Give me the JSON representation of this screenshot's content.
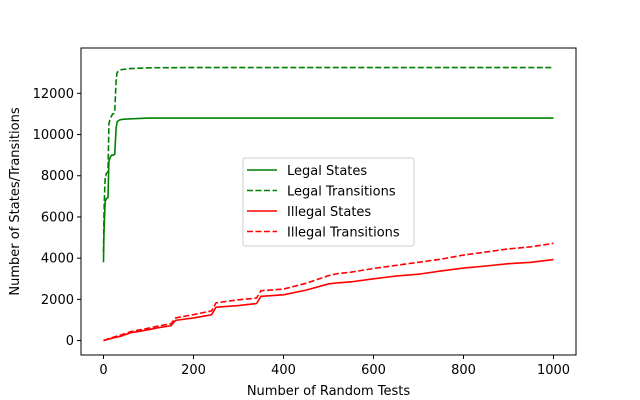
{
  "chart_data": {
    "type": "line",
    "xlabel": "Number of Random Tests",
    "ylabel": "Number of States/Transitions",
    "xlim": [
      -50,
      1050
    ],
    "ylim": [
      -700,
      14200
    ],
    "xticks": [
      0,
      200,
      400,
      600,
      800,
      1000
    ],
    "yticks": [
      0,
      2000,
      4000,
      6000,
      8000,
      10000,
      12000
    ],
    "grid": false,
    "legend_position": "center",
    "series": [
      {
        "name": "Legal States",
        "color": "#008000",
        "dash": "solid",
        "x": [
          0,
          1,
          2,
          3,
          4,
          5,
          6,
          8,
          10,
          12,
          15,
          18,
          20,
          22,
          25,
          28,
          30,
          32,
          35,
          40,
          50,
          60,
          80,
          100,
          200,
          400,
          600,
          800,
          1000
        ],
        "y": [
          3800,
          5200,
          5800,
          6400,
          6800,
          6800,
          6900,
          6900,
          6950,
          8700,
          8900,
          9000,
          9000,
          9000,
          9050,
          10300,
          10600,
          10650,
          10700,
          10730,
          10750,
          10760,
          10780,
          10800,
          10800,
          10800,
          10800,
          10800,
          10800
        ]
      },
      {
        "name": "Legal Transitions",
        "color": "#008000",
        "dash": "dashed",
        "x": [
          0,
          1,
          2,
          3,
          4,
          5,
          6,
          8,
          10,
          12,
          15,
          18,
          20,
          22,
          25,
          28,
          30,
          32,
          35,
          40,
          50,
          60,
          80,
          100,
          200,
          400,
          600,
          800,
          1000
        ],
        "y": [
          4300,
          6000,
          6900,
          7500,
          8000,
          8000,
          8100,
          8150,
          8200,
          10500,
          10800,
          10900,
          11000,
          11000,
          11100,
          12600,
          13000,
          13050,
          13100,
          13150,
          13180,
          13200,
          13220,
          13240,
          13250,
          13250,
          13250,
          13250,
          13250
        ]
      },
      {
        "name": "Illegal States",
        "color": "#ff0000",
        "dash": "solid",
        "x": [
          0,
          10,
          20,
          40,
          60,
          80,
          100,
          120,
          150,
          160,
          200,
          240,
          250,
          300,
          340,
          350,
          400,
          450,
          500,
          520,
          550,
          600,
          650,
          700,
          750,
          800,
          850,
          900,
          950,
          1000
        ],
        "y": [
          0,
          60,
          120,
          220,
          380,
          450,
          530,
          620,
          720,
          980,
          1100,
          1250,
          1620,
          1700,
          1800,
          2150,
          2220,
          2450,
          2750,
          2800,
          2850,
          3000,
          3130,
          3220,
          3380,
          3520,
          3620,
          3730,
          3800,
          3930
        ]
      },
      {
        "name": "Illegal Transitions",
        "color": "#ff0000",
        "dash": "dashed",
        "x": [
          0,
          10,
          20,
          40,
          60,
          80,
          100,
          120,
          150,
          160,
          200,
          240,
          250,
          300,
          340,
          350,
          400,
          450,
          500,
          520,
          550,
          600,
          650,
          700,
          750,
          800,
          850,
          900,
          950,
          1000
        ],
        "y": [
          0,
          80,
          150,
          280,
          430,
          520,
          600,
          700,
          820,
          1100,
          1260,
          1440,
          1830,
          1980,
          2060,
          2420,
          2500,
          2780,
          3150,
          3250,
          3320,
          3500,
          3650,
          3800,
          3950,
          4150,
          4300,
          4450,
          4550,
          4720
        ]
      }
    ]
  }
}
